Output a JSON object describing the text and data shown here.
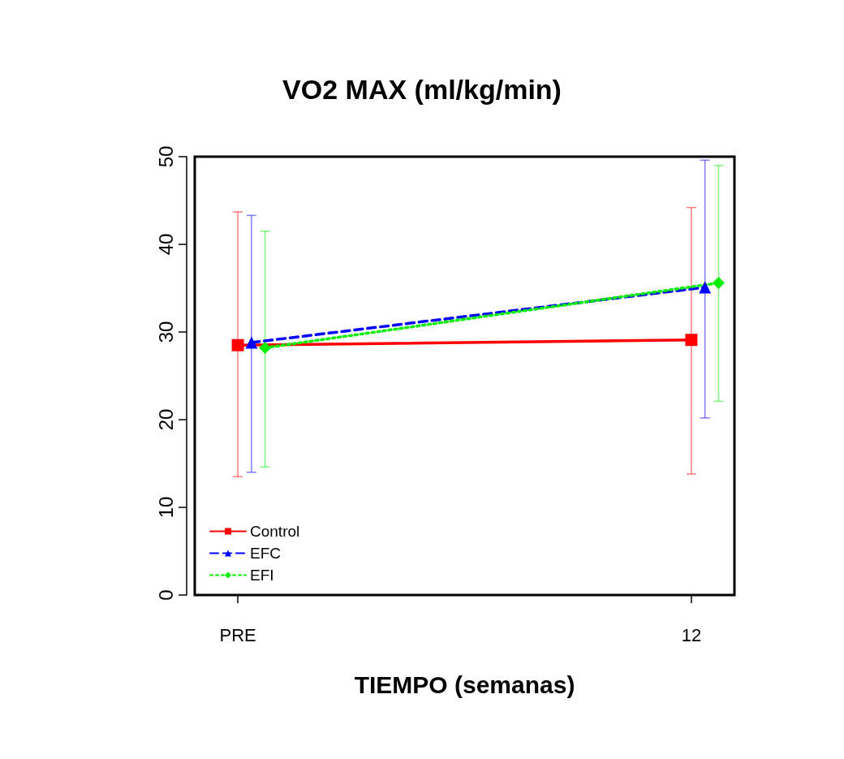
{
  "chart_data": {
    "type": "line",
    "title": "VO2 MAX (ml/kg/min)",
    "xlabel": "TIEMPO (semanas)",
    "categories": [
      "PRE",
      "12"
    ],
    "ylim": [
      0,
      50
    ],
    "yticks": [
      0,
      10,
      20,
      30,
      40,
      50
    ],
    "grid": false,
    "legend": "bottom left",
    "series": [
      {
        "name": "Control",
        "color": "#ff0000",
        "marker": "square",
        "line_style": "solid",
        "values": [
          28.5,
          29.1
        ],
        "errors": [
          [
            13.5,
            43.7
          ],
          [
            13.8,
            44.2
          ]
        ]
      },
      {
        "name": "EFC",
        "color": "#0000ff",
        "marker": "triangle",
        "line_style": "dashed",
        "values": [
          28.8,
          35.1
        ],
        "errors": [
          [
            14.0,
            43.3
          ],
          [
            20.2,
            49.6
          ]
        ]
      },
      {
        "name": "EFI",
        "color": "#00ee00",
        "marker": "diamond",
        "line_style": "dotted",
        "values": [
          28.2,
          35.6
        ],
        "errors": [
          [
            14.6,
            41.5
          ],
          [
            22.1,
            49.0
          ]
        ]
      }
    ]
  }
}
